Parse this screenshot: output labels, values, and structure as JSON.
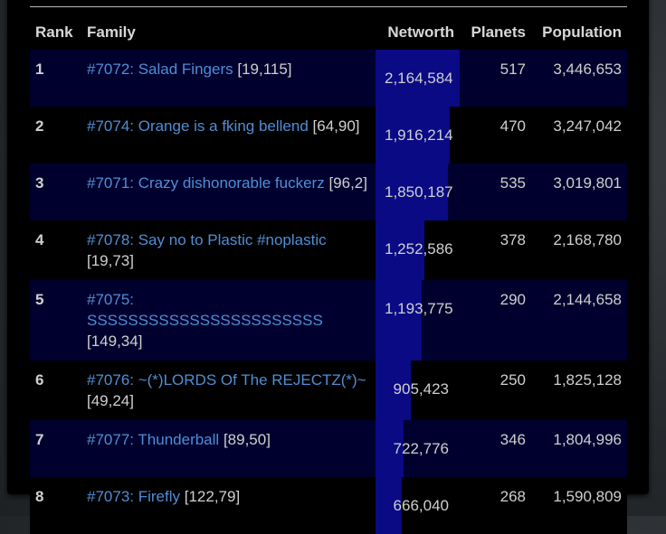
{
  "table": {
    "headers": {
      "rank": "Rank",
      "family": "Family",
      "networth": "Networth",
      "planets": "Planets",
      "population": "Population"
    },
    "rows": [
      {
        "rank": "1",
        "family_name": "#7072: Salad Fingers",
        "coords": "[19,115]",
        "networth": "2,164,584",
        "networth_share": 1.0,
        "planets": "517",
        "population": "3,446,653"
      },
      {
        "rank": "2",
        "family_name": "#7074: Orange is a fking bellend",
        "coords": "[64,90]",
        "networth": "1,916,214",
        "networth_share": 0.885,
        "planets": "470",
        "population": "3,247,042"
      },
      {
        "rank": "3",
        "family_name": "#7071: Crazy dishonorable fuckerz",
        "coords": "[96,2]",
        "networth": "1,850,187",
        "networth_share": 0.855,
        "planets": "535",
        "population": "3,019,801"
      },
      {
        "rank": "4",
        "family_name": "#7078: Say no to Plastic #noplastic",
        "coords": "[19,73]",
        "networth": "1,252,586",
        "networth_share": 0.579,
        "planets": "378",
        "population": "2,168,780"
      },
      {
        "rank": "5",
        "family_name": "#7075: SSSSSSSSSSSSSSSSSSSSSSS",
        "coords": "[149,34]",
        "networth": "1,193,775",
        "networth_share": 0.552,
        "planets": "290",
        "population": "2,144,658"
      },
      {
        "rank": "6",
        "family_name": "#7076: ~(*)LORDS Of The REJECTZ(*)~",
        "coords": "[49,24]",
        "networth": "905,423",
        "networth_share": 0.418,
        "planets": "250",
        "population": "1,825,128"
      },
      {
        "rank": "7",
        "family_name": "#7077: Thunderball",
        "coords": "[89,50]",
        "networth": "722,776",
        "networth_share": 0.334,
        "planets": "346",
        "population": "1,804,996"
      },
      {
        "rank": "8",
        "family_name": "#7073: Firefly",
        "coords": "[122,79]",
        "networth": "666,040",
        "networth_share": 0.308,
        "planets": "268",
        "population": "1,590,809"
      }
    ]
  },
  "colors": {
    "link": "#4f8ed6",
    "odd_row": "#00002e",
    "networth_bar": "#0a0a84"
  }
}
